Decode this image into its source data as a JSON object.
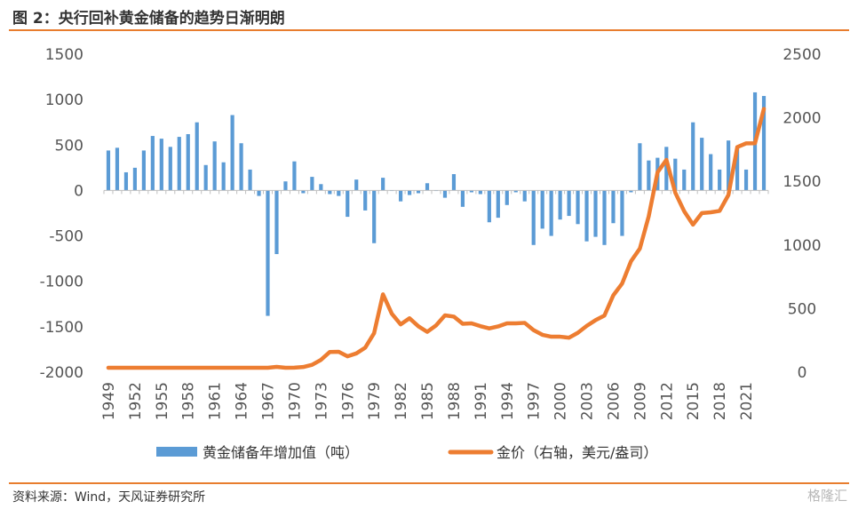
{
  "title": "图 2：央行回补黄金储备的趋势日渐明朗",
  "source": "资料来源：Wind，天风证券研究所",
  "watermark": "格隆汇",
  "chart_data": {
    "type": "bar+line",
    "title": "图 2：央行回补黄金储备的趋势日渐明朗",
    "legend_position": "bottom",
    "grid": false,
    "colors": {
      "bar": "#5B9BD5",
      "line": "#ED7D31"
    },
    "y_left": {
      "min": -2000,
      "max": 1500,
      "ticks": [
        1500,
        1000,
        500,
        0,
        -500,
        -1000,
        -1500,
        -2000
      ]
    },
    "y_right": {
      "min": 0,
      "max": 2500,
      "ticks": [
        2500,
        2000,
        1500,
        1000,
        500,
        0
      ]
    },
    "x_tick_labels": [
      "1949",
      "1952",
      "1955",
      "1958",
      "1961",
      "1964",
      "1967",
      "1970",
      "1973",
      "1976",
      "1979",
      "1982",
      "1985",
      "1988",
      "1991",
      "1994",
      "1997",
      "2000",
      "2003",
      "2006",
      "2009",
      "2012",
      "2015",
      "2018",
      "2021"
    ],
    "years": [
      1949,
      1950,
      1951,
      1952,
      1953,
      1954,
      1955,
      1956,
      1957,
      1958,
      1959,
      1960,
      1961,
      1962,
      1963,
      1964,
      1965,
      1966,
      1967,
      1968,
      1969,
      1970,
      1971,
      1972,
      1973,
      1974,
      1975,
      1976,
      1977,
      1978,
      1979,
      1980,
      1981,
      1982,
      1983,
      1984,
      1985,
      1986,
      1987,
      1988,
      1989,
      1990,
      1991,
      1992,
      1993,
      1994,
      1995,
      1996,
      1997,
      1998,
      1999,
      2000,
      2001,
      2002,
      2003,
      2004,
      2005,
      2006,
      2007,
      2008,
      2009,
      2010,
      2011,
      2012,
      2013,
      2014,
      2015,
      2016,
      2017,
      2018,
      2019,
      2020,
      2021,
      2022,
      2023
    ],
    "series": [
      {
        "name": "黄金储备年增加值（吨）",
        "type": "bar",
        "axis": "left",
        "values": [
          440,
          470,
          200,
          250,
          440,
          600,
          570,
          480,
          590,
          620,
          750,
          280,
          540,
          310,
          830,
          520,
          230,
          -60,
          -1380,
          -700,
          100,
          320,
          -30,
          150,
          70,
          -40,
          -60,
          -290,
          120,
          -220,
          -580,
          140,
          0,
          -120,
          -50,
          -30,
          80,
          0,
          -80,
          180,
          -180,
          -20,
          -40,
          -350,
          -300,
          -160,
          -20,
          -120,
          -600,
          -420,
          -500,
          -320,
          -280,
          -370,
          -560,
          -510,
          -600,
          -360,
          -500,
          -20,
          520,
          330,
          360,
          480,
          350,
          230,
          750,
          580,
          400,
          230,
          550,
          490,
          230,
          1080,
          1040
        ]
      },
      {
        "name": "金价（右轴，美元/盎司）",
        "type": "line",
        "axis": "right",
        "values": [
          35,
          35,
          35,
          35,
          35,
          35,
          35,
          35,
          35,
          35,
          35,
          35,
          35,
          35,
          35,
          35,
          35,
          35,
          35,
          42,
          35,
          36,
          41,
          58,
          97,
          159,
          161,
          125,
          148,
          193,
          307,
          612,
          460,
          376,
          424,
          361,
          317,
          368,
          447,
          437,
          381,
          384,
          362,
          344,
          360,
          384,
          384,
          388,
          331,
          294,
          279,
          279,
          271,
          310,
          364,
          409,
          445,
          604,
          697,
          872,
          972,
          1225,
          1572,
          1669,
          1411,
          1266,
          1160,
          1251,
          1257,
          1268,
          1393,
          1770,
          1799,
          1800,
          2070
        ]
      }
    ]
  }
}
